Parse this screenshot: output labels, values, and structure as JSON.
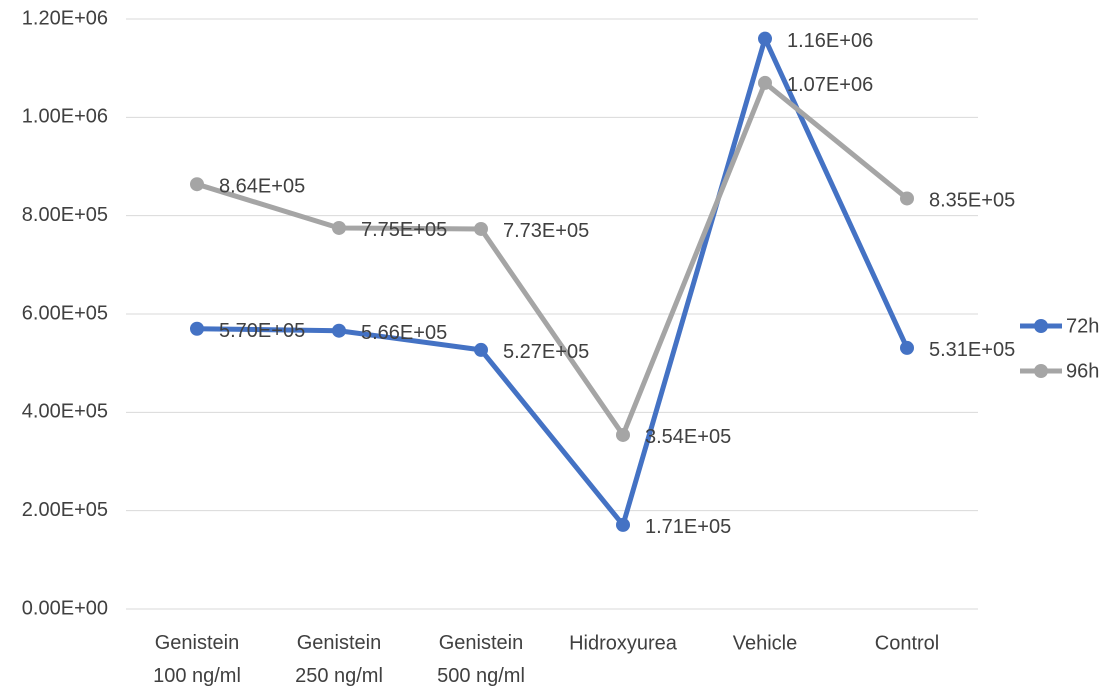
{
  "chart_data": {
    "type": "line",
    "categories": [
      "Genistein 100 ng/ml",
      "Genistein 250 ng/ml",
      "Genistein 500 ng/ml",
      "Hidroxyurea",
      "Vehicle",
      "Control"
    ],
    "series": [
      {
        "name": "72h",
        "color": "#4472c4",
        "values": [
          570000,
          566000,
          527000,
          171000,
          1160000,
          531000
        ],
        "value_labels": [
          "5.70E+05",
          "5.66E+05",
          "5.27E+05",
          "1.71E+05",
          "1.16E+06",
          "5.31E+05"
        ]
      },
      {
        "name": "96h",
        "color": "#a5a5a5",
        "values": [
          864000,
          775000,
          773000,
          354000,
          1070000,
          835000
        ],
        "value_labels": [
          "8.64E+05",
          "7.75E+05",
          "7.73E+05",
          "3.54E+05",
          "1.07E+06",
          "8.35E+05"
        ]
      }
    ],
    "ylim": [
      0,
      1200000
    ],
    "yticks": [
      {
        "value": 0,
        "label": "0.00E+00"
      },
      {
        "value": 200000,
        "label": "2.00E+05"
      },
      {
        "value": 400000,
        "label": "4.00E+05"
      },
      {
        "value": 600000,
        "label": "6.00E+05"
      },
      {
        "value": 800000,
        "label": "8.00E+05"
      },
      {
        "value": 1000000,
        "label": "1.00E+06"
      },
      {
        "value": 1200000,
        "label": "1.20E+06"
      }
    ],
    "grid": true,
    "legend": "right"
  }
}
